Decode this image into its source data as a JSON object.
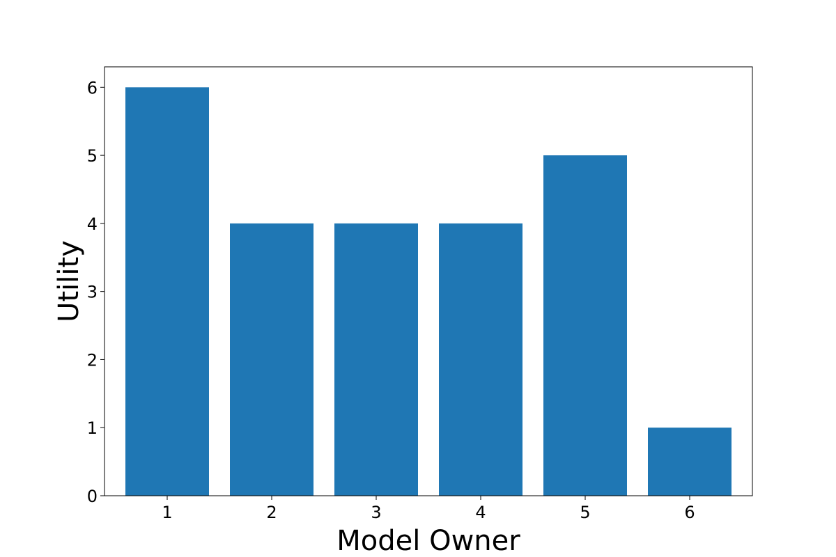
{
  "chart_data": {
    "type": "bar",
    "categories": [
      "1",
      "2",
      "3",
      "4",
      "5",
      "6"
    ],
    "values": [
      6,
      4,
      4,
      4,
      5,
      1
    ],
    "xlabel": "Model Owner",
    "ylabel": "Utility",
    "ylim": [
      0,
      6.3
    ],
    "yticks": [
      0,
      1,
      2,
      3,
      4,
      5,
      6
    ],
    "bar_color": "#1f77b4",
    "grid": false,
    "legend": "none"
  }
}
